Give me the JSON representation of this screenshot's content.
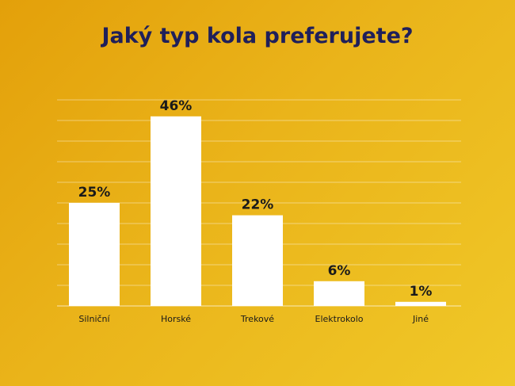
{
  "chart_data": {
    "type": "bar",
    "title": "Jaký typ kola preferujete?",
    "categories": [
      "Silniční",
      "Horské",
      "Trekové",
      "Elektrokolo",
      "Jiné"
    ],
    "values": [
      25,
      46,
      22,
      6,
      1
    ],
    "value_labels": [
      "25%",
      "46%",
      "22%",
      "6%",
      "1%"
    ],
    "ylim": [
      0,
      50
    ],
    "grid": true,
    "bar_color": "#ffffff",
    "title_color": "#1f1f5a"
  }
}
